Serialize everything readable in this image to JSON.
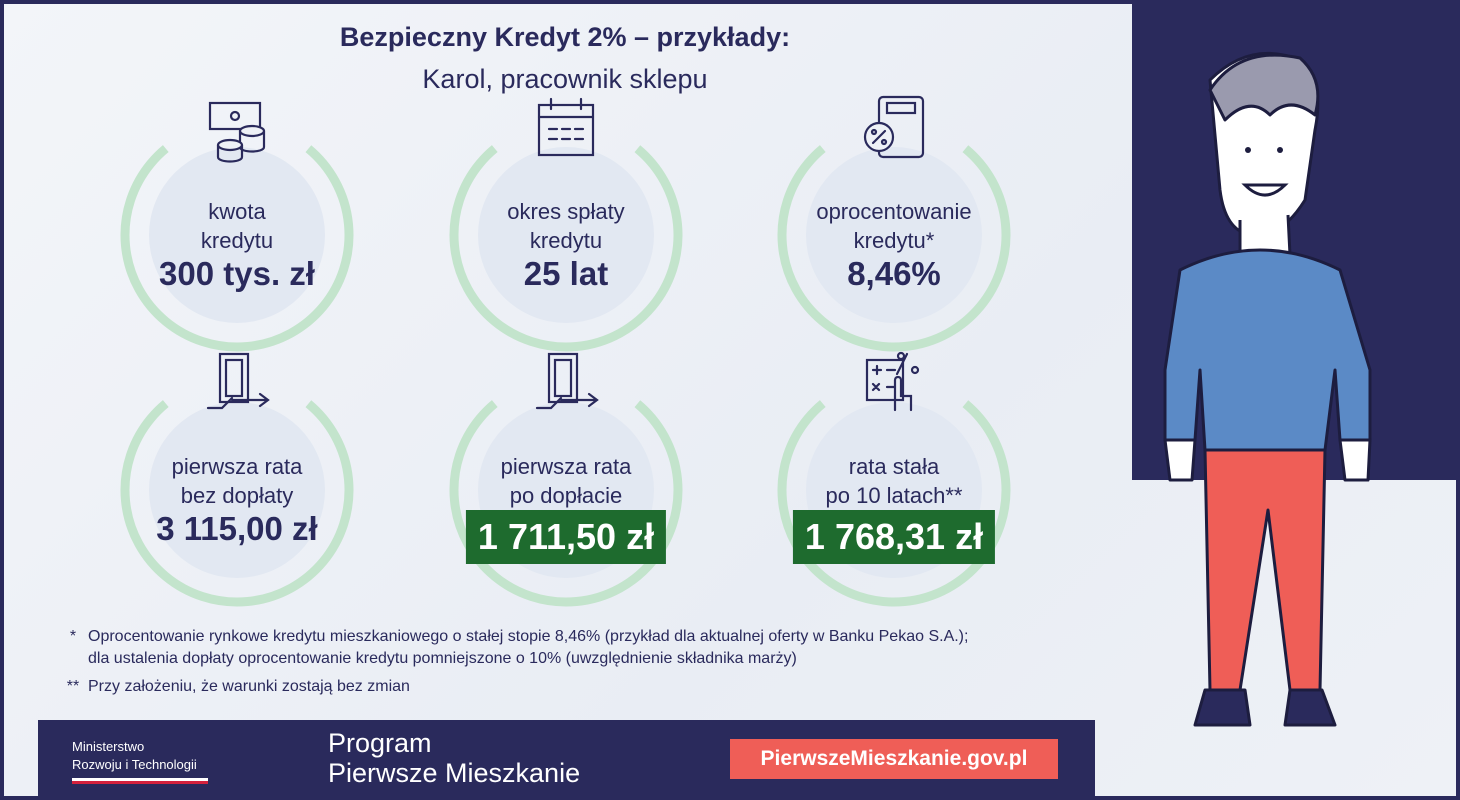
{
  "header": {
    "title": "Bezpieczny Kredyt 2% – przykłady:",
    "subtitle": "Karol, pracownik sklepu"
  },
  "colors": {
    "navy": "#2a2a5c",
    "ring": "#c3e4cc",
    "highlight": "#1e6b2e",
    "url_bg": "#ef5e57"
  },
  "cards": [
    {
      "icon": "money-coins-icon",
      "label_1": "kwota",
      "label_2": "kredytu",
      "value": "300 tys. zł",
      "highlighted": false
    },
    {
      "icon": "calendar-icon",
      "label_1": "okres spłaty",
      "label_2": "kredytu",
      "value": "25 lat",
      "highlighted": false
    },
    {
      "icon": "calculator-percent-icon",
      "label_1": "oprocentowanie",
      "label_2": "kredytu*",
      "value": "8,46%",
      "highlighted": false
    },
    {
      "icon": "payment-transfer-icon",
      "label_1": "pierwsza rata",
      "label_2": "bez dopłaty",
      "value": "3 115,00 zł",
      "highlighted": false
    },
    {
      "icon": "payment-transfer-icon",
      "label_1": "pierwsza rata",
      "label_2": "po dopłacie",
      "value": "1 711,50 zł",
      "highlighted": true
    },
    {
      "icon": "calculator-hand-percent-icon",
      "label_1": "rata stała",
      "label_2": "po 10 latach**",
      "value": "1 768,31 zł",
      "highlighted": true
    }
  ],
  "notes": [
    {
      "mark": "*",
      "line_1": "Oprocentowanie rynkowe kredytu mieszkaniowego o stałej stopie 8,46% (przykład dla aktualnej oferty w Banku Pekao S.A.);",
      "line_2": "dla ustalenia dopłaty oprocentowanie kredytu pomniejszone o 10% (uwzględnienie składnika marży)"
    },
    {
      "mark": "**",
      "line_1": "Przy założeniu, że warunki zostają bez zmian"
    }
  ],
  "footer": {
    "ministry_1": "Ministerstwo",
    "ministry_2": "Rozwoju i Technologii",
    "program_1": "Program",
    "program_2": "Pierwsze Mieszkanie",
    "url": "PierwszeMieszkanie.gov.pl"
  }
}
